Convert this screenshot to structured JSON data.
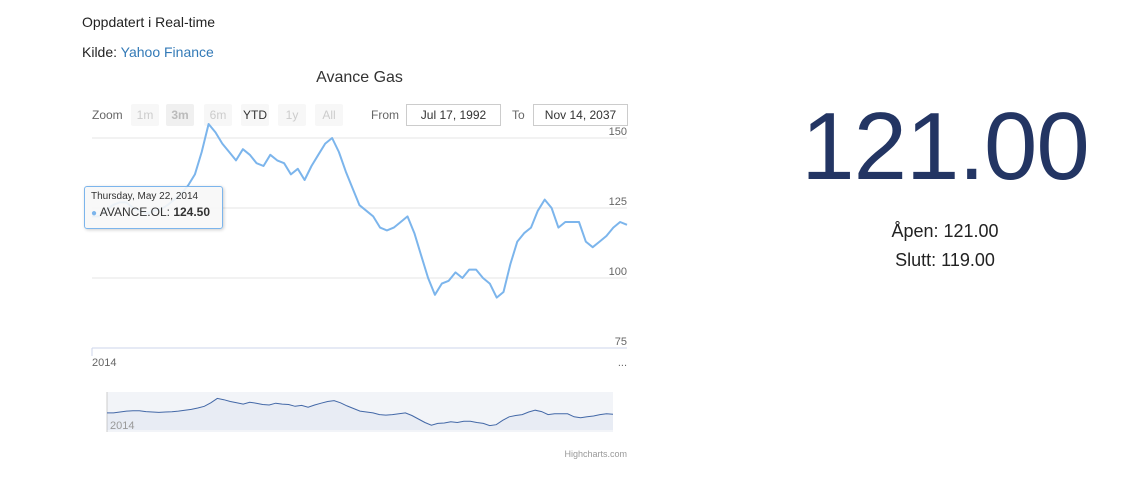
{
  "header": {
    "updated_text": "Oppdatert i Real-time",
    "source_prefix": "Kilde: ",
    "source_link": "Yahoo Finance"
  },
  "chart": {
    "title": "Avance Gas",
    "zoom_label": "Zoom",
    "zoom_buttons": [
      "1m",
      "3m",
      "6m",
      "YTD",
      "1y",
      "All"
    ],
    "from_label": "From",
    "from_value": "Jul 17, 1992",
    "to_label": "To",
    "to_value": "Nov 14, 2037",
    "x_start_label": "2014",
    "x_end_label": "...",
    "navigator_label": "2014",
    "credits": "Highcharts.com",
    "tooltip": {
      "date": "Thursday, May 22, 2014",
      "series": "AVANCE.OL:",
      "value": "124.50"
    }
  },
  "chart_data": {
    "type": "line",
    "title": "Avance Gas",
    "yticks": [
      75,
      100,
      125,
      150
    ],
    "ylim": [
      75,
      150
    ],
    "grid": true,
    "series": [
      {
        "name": "AVANCE.OL",
        "color": "#7cb5ec",
        "values": [
          122,
          122,
          124,
          126,
          127,
          127,
          125,
          124,
          123,
          124,
          124.5,
          126,
          128,
          130,
          133,
          137,
          145,
          155,
          152,
          148,
          145,
          142,
          146,
          144,
          141,
          140,
          144,
          142,
          141,
          137,
          139,
          135,
          140,
          144,
          148,
          150,
          145,
          138,
          132,
          126,
          124,
          122,
          118,
          117,
          118,
          120,
          122,
          116,
          108,
          100,
          94,
          98,
          99,
          102,
          100,
          103,
          103,
          100,
          98,
          93,
          95,
          105,
          113,
          116,
          118,
          124,
          128,
          125,
          118,
          120,
          120,
          120,
          113,
          111,
          113,
          115,
          118,
          120,
          119
        ]
      }
    ]
  },
  "quote": {
    "price": "121.00",
    "open": "Åpen: 121.00",
    "close": "Slutt: 119.00"
  }
}
